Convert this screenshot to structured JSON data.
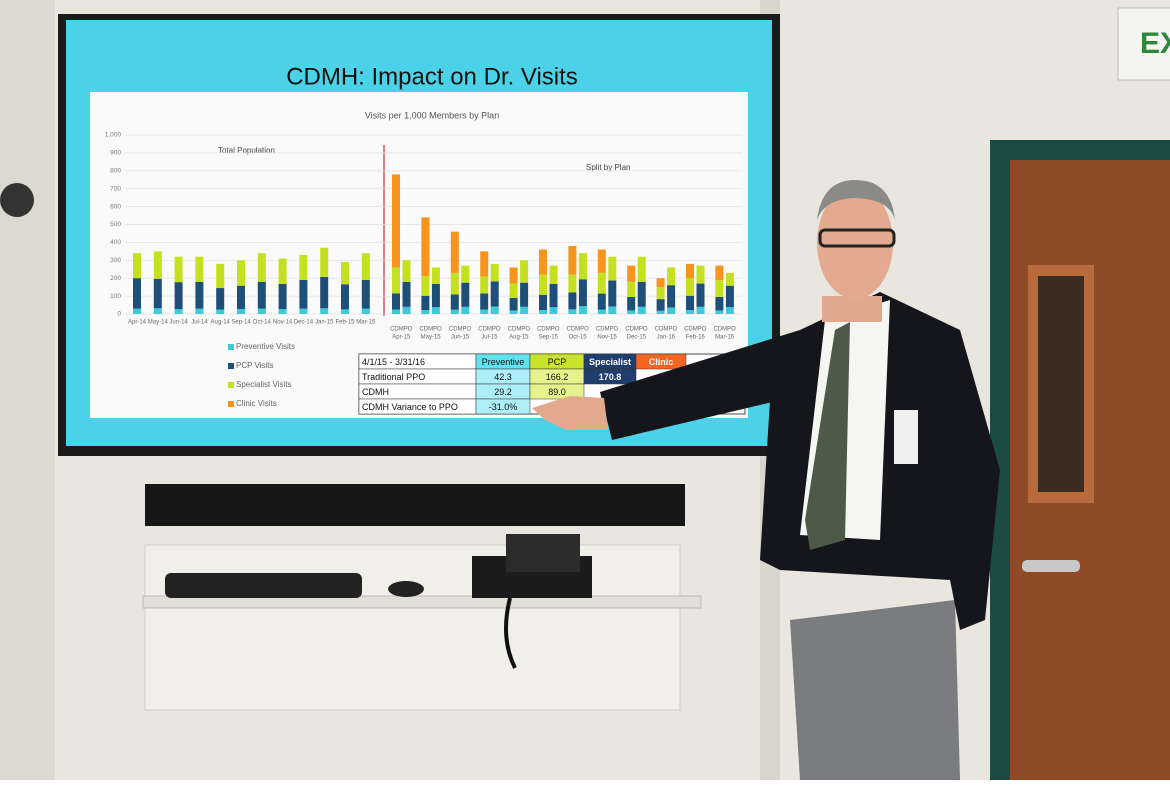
{
  "slide_title": "CDMH: Impact on Dr. Visits",
  "chart_data": {
    "type": "stacked-bar",
    "title": "Visits per 1,000 Members by Plan",
    "annotations": [
      "Total Population",
      "Split by Plan"
    ],
    "categories": [
      "Apr-14",
      "May-14",
      "Jun-14",
      "Jul-14",
      "Aug-14",
      "Sep-14",
      "Oct-14",
      "Nov-14",
      "Dec-14",
      "Jan-15",
      "Feb-15",
      "Mar-15",
      "CDMPO",
      "Apr-15",
      "CDMPO",
      "May-15",
      "CDMPO",
      "Jun-15",
      "CDMPO",
      "Jul-15",
      "CDMPO",
      "Aug-15",
      "CDMPO",
      "Sep-15",
      "CDMPO",
      "Oct-15",
      "CDMPO",
      "Nov-15",
      "CDMPO",
      "Dec-15",
      "CDMPO",
      "Jan-16",
      "CDMPO",
      "Feb-16",
      "CDMPO",
      "Mar-16"
    ],
    "series": [
      {
        "name": "Preventive Visits",
        "color": "#3fc9d8",
        "values": [
          30,
          32,
          28,
          30,
          25,
          28,
          30,
          28,
          30,
          32,
          26,
          30,
          25,
          40,
          22,
          38,
          24,
          40,
          25,
          42,
          20,
          40,
          22,
          38,
          26,
          44,
          24,
          42,
          20,
          40,
          18,
          36,
          22,
          40,
          20,
          38
        ]
      },
      {
        "name": "PCP Visits",
        "color": "#1f4e79",
        "values": [
          170,
          165,
          150,
          150,
          120,
          130,
          150,
          140,
          160,
          175,
          140,
          160,
          90,
          140,
          80,
          130,
          85,
          135,
          90,
          140,
          70,
          135,
          85,
          130,
          95,
          150,
          90,
          145,
          75,
          140,
          65,
          125,
          80,
          130,
          75,
          120
        ]
      },
      {
        "name": "Specialist Visits",
        "color": "#c5e01f",
        "values": [
          140,
          153,
          142,
          140,
          135,
          142,
          160,
          142,
          140,
          163,
          124,
          150,
          145,
          120,
          110,
          92,
          121,
          95,
          95,
          98,
          80,
          125,
          113,
          102,
          99,
          146,
          116,
          133,
          85,
          140,
          67,
          99,
          98,
          100,
          95,
          72
        ]
      },
      {
        "name": "Clinic Visits",
        "color": "#f7941d",
        "values": [
          0,
          0,
          0,
          0,
          0,
          0,
          0,
          0,
          0,
          0,
          0,
          0,
          520,
          0,
          328,
          0,
          230,
          0,
          140,
          0,
          90,
          0,
          140,
          0,
          160,
          0,
          130,
          0,
          90,
          0,
          50,
          0,
          80,
          0,
          80,
          0
        ]
      }
    ],
    "ylim": [
      0,
      1000
    ],
    "yticks": [
      0,
      100,
      200,
      300,
      400,
      500,
      600,
      700,
      800,
      900,
      {
        "value": 1000,
        "label": "1,000"
      }
    ],
    "grid": true
  },
  "table": {
    "header": [
      "4/1/15 - 3/31/16",
      "Preventive",
      "PCP",
      "Specialist",
      "Clinic"
    ],
    "rows": [
      [
        "Traditional PPO",
        "42.3",
        "166.2",
        "170.8"
      ],
      [
        "CDMH",
        "29.2",
        "89.0"
      ],
      [
        "CDMH Variance to PPO",
        "-31.0%"
      ]
    ]
  },
  "exit_sign": "EX"
}
